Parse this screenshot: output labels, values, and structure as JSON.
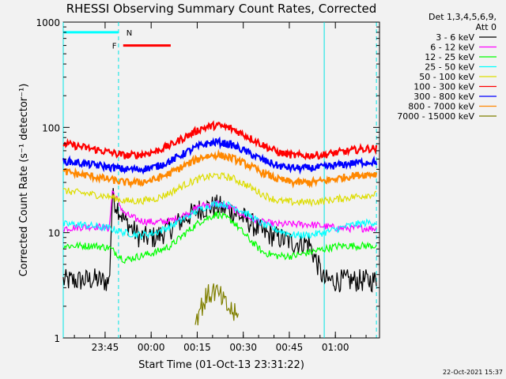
{
  "chart_data": {
    "type": "line",
    "title": "RHESSI Observing Summary Count Rates, Corrected",
    "xlabel": "Start Time (01-Oct-13 23:31:22)",
    "ylabel": "Corrected Count Rate (s⁻¹ detector⁻¹)",
    "xunit": "minutes after 23:31:22",
    "xlim": [
      0,
      103
    ],
    "ylim": [
      1,
      1000
    ],
    "yscale": "log",
    "x_ticks": [
      {
        "label": "23:45",
        "x": 13.63
      },
      {
        "label": "00:00",
        "x": 28.63
      },
      {
        "label": "00:15",
        "x": 43.63
      },
      {
        "label": "00:30",
        "x": 58.63
      },
      {
        "label": "00:45",
        "x": 73.63
      },
      {
        "label": "01:00",
        "x": 88.63
      }
    ],
    "y_ticks": [
      {
        "label": "1000",
        "y": 1000
      },
      {
        "label": "100",
        "y": 100
      },
      {
        "label": "10",
        "y": 10
      },
      {
        "label": "1",
        "y": 1
      }
    ],
    "legend": {
      "position": "top-right, outside plot",
      "header": [
        "Det 1,3,4,5,6,9,",
        "Att 0"
      ]
    },
    "series": [
      {
        "name": "3 - 6 keV",
        "color": "#000000",
        "x": [
          0,
          5,
          10,
          15,
          16,
          20,
          25,
          30,
          35,
          40,
          45,
          50,
          55,
          60,
          65,
          70,
          75,
          80,
          85,
          90,
          95,
          100,
          102
        ],
        "y": [
          3.5,
          3.5,
          3.6,
          3.4,
          22,
          13,
          9,
          9,
          11,
          14,
          17,
          18,
          16,
          13,
          10,
          9,
          8,
          8,
          3.5,
          3.5,
          3.5,
          3.5,
          3.5
        ]
      },
      {
        "name": "6 - 12 keV",
        "color": "#ff00ff",
        "x": [
          0,
          10,
          15,
          16,
          20,
          25,
          30,
          35,
          40,
          45,
          50,
          55,
          60,
          65,
          70,
          75,
          80,
          85,
          90,
          95,
          100,
          102
        ],
        "y": [
          11,
          11.5,
          11,
          25,
          15,
          13,
          12.5,
          13,
          15,
          18,
          19,
          17,
          14,
          12.5,
          12,
          12,
          12,
          11.5,
          11,
          11,
          11,
          11
        ]
      },
      {
        "name": "12 - 25 keV",
        "color": "#00ff00",
        "x": [
          0,
          5,
          10,
          15,
          20,
          25,
          30,
          35,
          40,
          45,
          50,
          55,
          60,
          65,
          70,
          75,
          80,
          85,
          90,
          95,
          100,
          102
        ],
        "y": [
          7.5,
          7.5,
          7.5,
          7.2,
          5.5,
          6,
          6.5,
          7.5,
          10,
          13,
          15,
          13,
          9,
          6.5,
          6,
          6,
          6.5,
          7,
          7.5,
          7.5,
          7.5,
          7.5
        ]
      },
      {
        "name": "25 - 50 keV",
        "color": "#00ffff",
        "x": [
          0,
          5,
          10,
          15,
          20,
          25,
          30,
          35,
          40,
          45,
          50,
          55,
          60,
          65,
          70,
          75,
          80,
          85,
          90,
          95,
          100,
          102
        ],
        "y": [
          12,
          12,
          11.5,
          11,
          10,
          9.5,
          10,
          11.5,
          14,
          17,
          19,
          18,
          15,
          12,
          10.5,
          9.5,
          9.5,
          10,
          11,
          12,
          12.5,
          12.5
        ]
      },
      {
        "name": "50 - 100 keV",
        "color": "#dddd00",
        "x": [
          0,
          5,
          10,
          15,
          20,
          25,
          30,
          35,
          40,
          45,
          50,
          55,
          60,
          65,
          70,
          75,
          80,
          85,
          90,
          95,
          100,
          102
        ],
        "y": [
          25,
          24,
          23,
          22,
          20,
          20,
          21,
          24,
          29,
          33,
          35,
          33,
          28,
          23,
          20,
          19.5,
          19.5,
          20,
          21,
          22,
          23,
          23
        ]
      },
      {
        "name": "100 - 300 keV",
        "color": "#ff0000",
        "x": [
          0,
          5,
          10,
          15,
          20,
          25,
          30,
          35,
          40,
          45,
          50,
          55,
          60,
          65,
          70,
          75,
          80,
          85,
          90,
          95,
          100,
          102
        ],
        "y": [
          70,
          66,
          62,
          58,
          54,
          55,
          59,
          68,
          82,
          98,
          105,
          97,
          82,
          68,
          58,
          54,
          54,
          55,
          58,
          61,
          63,
          63
        ]
      },
      {
        "name": "300 - 800 keV",
        "color": "#0000ff",
        "x": [
          0,
          5,
          10,
          15,
          20,
          25,
          30,
          35,
          40,
          45,
          50,
          55,
          60,
          65,
          70,
          75,
          80,
          85,
          90,
          95,
          100,
          102
        ],
        "y": [
          48,
          46,
          44,
          42,
          40,
          40,
          42,
          48,
          58,
          68,
          73,
          68,
          58,
          49,
          43,
          41,
          41,
          42,
          44,
          46,
          47,
          47
        ]
      },
      {
        "name": "800 - 7000 keV",
        "color": "#ff8800",
        "x": [
          0,
          5,
          10,
          15,
          20,
          25,
          30,
          35,
          40,
          45,
          50,
          55,
          60,
          65,
          70,
          75,
          80,
          85,
          90,
          95,
          100,
          102
        ],
        "y": [
          38,
          36,
          34,
          32,
          30,
          30,
          32,
          37,
          44,
          52,
          55,
          51,
          44,
          37,
          32,
          30,
          30,
          31,
          33,
          35,
          36,
          36
        ]
      },
      {
        "name": "7000 - 15000 keV",
        "color": "#808000",
        "x": [
          43,
          45,
          47,
          49,
          51,
          53,
          55,
          57
        ],
        "y": [
          1.5,
          2,
          2.5,
          2.8,
          2.5,
          2,
          1.8,
          1.5
        ]
      }
    ],
    "attenuator_state_line": {
      "color": "#00ffff",
      "start": 0,
      "end": 18
    },
    "annotations": [
      {
        "label": "F",
        "color": "#ff0000",
        "x_start": 19,
        "x_end": 35
      },
      {
        "label": "N",
        "color": "#00ffff",
        "x": 19
      }
    ],
    "night_boundaries": [
      {
        "x": 0,
        "style": "solid"
      },
      {
        "x": 18,
        "style": "dashed"
      },
      {
        "x": 85,
        "style": "solid"
      },
      {
        "x": 102,
        "style": "dashed"
      }
    ],
    "footer_date": "22-Oct-2021 15:37"
  }
}
